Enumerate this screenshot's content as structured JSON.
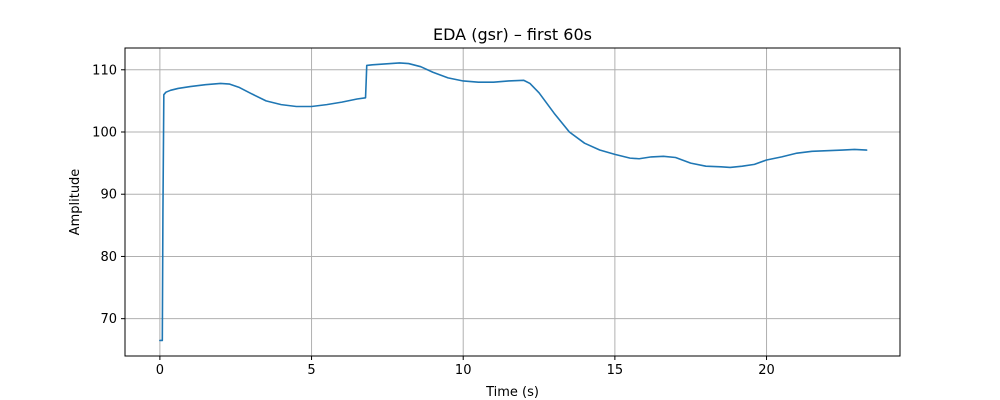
{
  "chart_data": {
    "type": "line",
    "title": "EDA (gsr) – first 60s",
    "xlabel": "Time (s)",
    "ylabel": "Amplitude",
    "xlim": [
      -1.15,
      24.4
    ],
    "ylim": [
      64.0,
      113.5
    ],
    "xticks": [
      0,
      5,
      10,
      15,
      20
    ],
    "yticks": [
      70,
      80,
      90,
      100,
      110
    ],
    "grid": true,
    "series": [
      {
        "color": "#1f77b4",
        "x": [
          0.0,
          0.08,
          0.1,
          0.13,
          0.2,
          0.35,
          0.6,
          1.0,
          1.5,
          2.0,
          2.3,
          2.6,
          3.0,
          3.5,
          4.0,
          4.5,
          5.0,
          5.5,
          6.0,
          6.5,
          6.78,
          6.8,
          6.82,
          7.0,
          7.3,
          7.6,
          7.9,
          8.2,
          8.6,
          9.0,
          9.5,
          10.0,
          10.5,
          11.0,
          11.5,
          12.0,
          12.2,
          12.5,
          13.0,
          13.5,
          14.0,
          14.5,
          15.0,
          15.5,
          15.8,
          16.2,
          16.6,
          17.0,
          17.5,
          18.0,
          18.5,
          18.8,
          19.2,
          19.6,
          20.0,
          20.5,
          21.0,
          21.5,
          22.0,
          22.5,
          22.9,
          23.3
        ],
        "y": [
          66.5,
          66.5,
          87.0,
          106.0,
          106.4,
          106.7,
          107.0,
          107.3,
          107.6,
          107.8,
          107.7,
          107.2,
          106.2,
          105.0,
          104.4,
          104.1,
          104.1,
          104.4,
          104.8,
          105.3,
          105.5,
          108.0,
          110.7,
          110.8,
          110.9,
          111.0,
          111.1,
          111.0,
          110.5,
          109.6,
          108.7,
          108.2,
          108.0,
          108.0,
          108.2,
          108.3,
          107.8,
          106.3,
          103.0,
          100.0,
          98.2,
          97.1,
          96.4,
          95.8,
          95.7,
          96.0,
          96.1,
          95.9,
          95.0,
          94.5,
          94.4,
          94.3,
          94.5,
          94.8,
          95.5,
          96.0,
          96.6,
          96.9,
          97.0,
          97.1,
          97.2,
          97.1
        ]
      }
    ]
  }
}
